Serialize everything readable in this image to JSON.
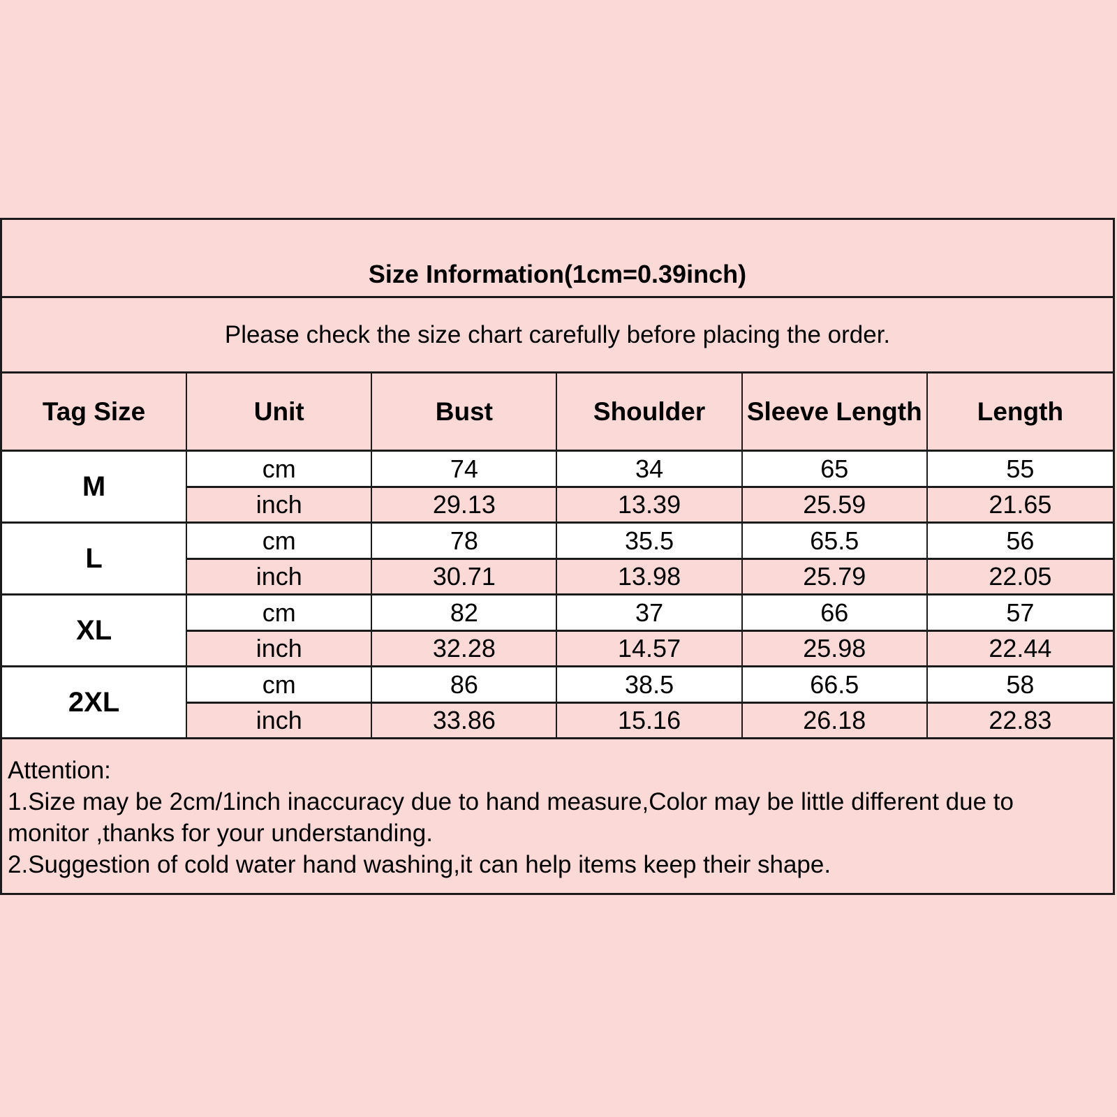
{
  "colors": {
    "background": "#fbd9d7",
    "row_alt_white": "#ffffff",
    "border": "#1b1b1b",
    "text": "#000000"
  },
  "chart_data": {
    "type": "table",
    "title": "Size Information(1cm=0.39inch)",
    "subtitle": "Please check the size chart carefully before placing the order.",
    "columns": [
      "Tag Size",
      "Unit",
      "Bust",
      "Shoulder",
      "Sleeve Length",
      "Length"
    ],
    "units": [
      "cm",
      "inch"
    ],
    "sizes": [
      {
        "tag": "M",
        "cm": [
          "74",
          "34",
          "65",
          "55"
        ],
        "inch": [
          "29.13",
          "13.39",
          "25.59",
          "21.65"
        ]
      },
      {
        "tag": "L",
        "cm": [
          "78",
          "35.5",
          "65.5",
          "56"
        ],
        "inch": [
          "30.71",
          "13.98",
          "25.79",
          "22.05"
        ]
      },
      {
        "tag": "XL",
        "cm": [
          "82",
          "37",
          "66",
          "57"
        ],
        "inch": [
          "32.28",
          "14.57",
          "25.98",
          "22.44"
        ]
      },
      {
        "tag": "2XL",
        "cm": [
          "86",
          "38.5",
          "66.5",
          "58"
        ],
        "inch": [
          "33.86",
          "15.16",
          "26.18",
          "22.83"
        ]
      }
    ]
  },
  "attention": {
    "heading": "Attention:",
    "lines": [
      "1.Size may be 2cm/1inch inaccuracy due to hand measure,Color may be little different due to",
      "monitor ,thanks for your understanding.",
      "2.Suggestion of cold water hand washing,it can help items keep their shape."
    ]
  }
}
